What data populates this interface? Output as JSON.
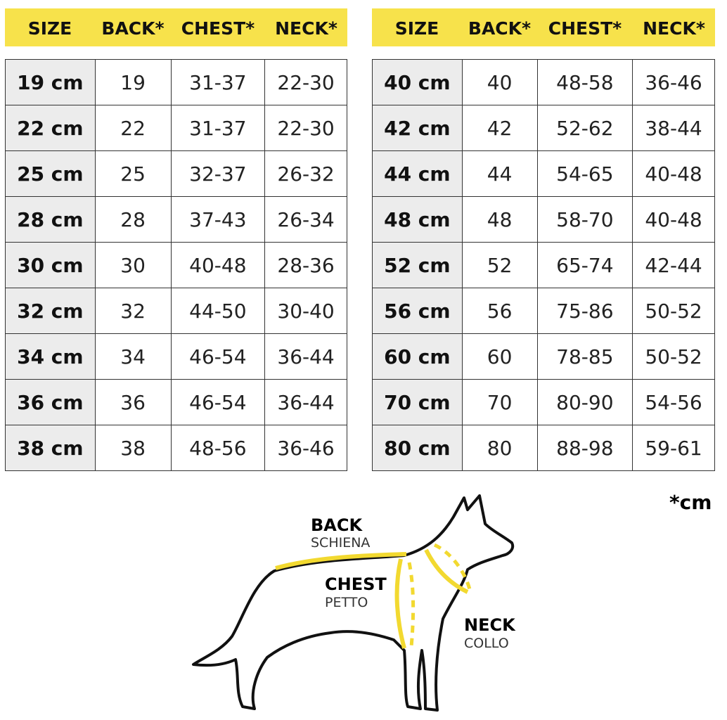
{
  "tables": [
    {
      "header": [
        "SIZE",
        "BACK*",
        "CHEST*",
        "NECK*"
      ],
      "rows": [
        [
          "19 cm",
          "19",
          "31-37",
          "22-30"
        ],
        [
          "22 cm",
          "22",
          "31-37",
          "22-30"
        ],
        [
          "25 cm",
          "25",
          "32-37",
          "26-32"
        ],
        [
          "28 cm",
          "28",
          "37-43",
          "26-34"
        ],
        [
          "30 cm",
          "30",
          "40-48",
          "28-36"
        ],
        [
          "32 cm",
          "32",
          "44-50",
          "30-40"
        ],
        [
          "34 cm",
          "34",
          "46-54",
          "36-44"
        ],
        [
          "36 cm",
          "36",
          "46-54",
          "36-44"
        ],
        [
          "38 cm",
          "38",
          "48-56",
          "36-46"
        ]
      ]
    },
    {
      "header": [
        "SIZE",
        "BACK*",
        "CHEST*",
        "NECK*"
      ],
      "rows": [
        [
          "40 cm",
          "40",
          "48-58",
          "36-46"
        ],
        [
          "42 cm",
          "42",
          "52-62",
          "38-44"
        ],
        [
          "44 cm",
          "44",
          "54-65",
          "40-48"
        ],
        [
          "48 cm",
          "48",
          "58-70",
          "40-48"
        ],
        [
          "52 cm",
          "52",
          "65-74",
          "42-44"
        ],
        [
          "56 cm",
          "56",
          "75-86",
          "50-52"
        ],
        [
          "60 cm",
          "60",
          "78-85",
          "50-52"
        ],
        [
          "70 cm",
          "70",
          "80-90",
          "54-56"
        ],
        [
          "80 cm",
          "80",
          "88-98",
          "59-61"
        ]
      ]
    }
  ],
  "note": "*cm",
  "diagram": {
    "back": {
      "title": "BACK",
      "subtitle": "SCHIENA"
    },
    "chest": {
      "title": "CHEST",
      "subtitle": "PETTO"
    },
    "neck": {
      "title": "NECK",
      "subtitle": "COLLO"
    }
  }
}
